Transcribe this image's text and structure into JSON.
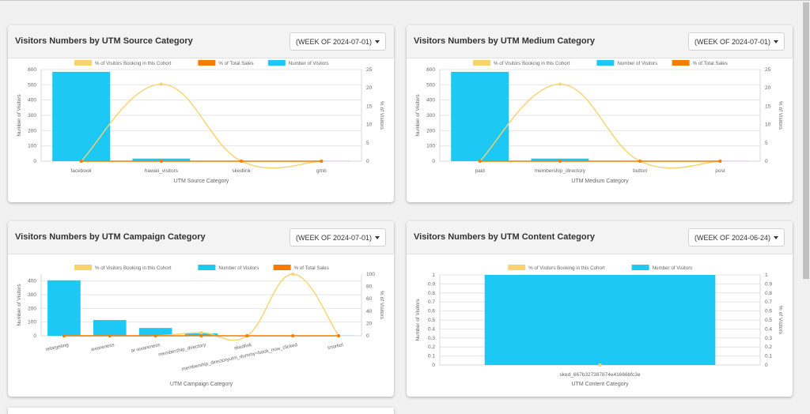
{
  "cards": [
    {
      "title": "Visitors Numbers by UTM Source Category",
      "week_value": "(WEEK OF 2024-07-01)",
      "legend": [
        {
          "label": "% of Visitors Booking in this Cohort",
          "color": "#f7d36c"
        },
        {
          "label": "% of Total Sales",
          "color": "#f57c00"
        },
        {
          "label": "Number of Visitors",
          "color": "#1ec8f5"
        }
      ],
      "y_left_label": "Number of Visitors",
      "y_right_label": "% of Visitors",
      "x_title": "UTM Source Category"
    },
    {
      "title": "Visitors Numbers by UTM Medium Category",
      "week_value": "(WEEK OF 2024-07-01)",
      "legend": [
        {
          "label": "% of Visitors Booking in this Cohort",
          "color": "#f7d36c"
        },
        {
          "label": "Number of Visitors",
          "color": "#1ec8f5"
        },
        {
          "label": "% of Total Sales",
          "color": "#f57c00"
        }
      ],
      "y_left_label": "Number of Visitors",
      "y_right_label": "% of Visitors",
      "x_title": "UTM Medium Category"
    },
    {
      "title": "Visitors Numbers by UTM Campaign Category",
      "week_value": "(WEEK OF 2024-07-01)",
      "legend": [
        {
          "label": "% of Visitors Booking in this Cohort",
          "color": "#f7d36c"
        },
        {
          "label": "Number of Visitors",
          "color": "#1ec8f5"
        },
        {
          "label": "% of Total Sales",
          "color": "#f57c00"
        }
      ],
      "y_left_label": "Number of Visitors",
      "y_right_label": "% of Visitors",
      "x_title": "UTM Campaign Category"
    },
    {
      "title": "Visitors Numbers by UTM Content Category",
      "week_value": "(WEEK OF 2024-06-24)",
      "legend": [
        {
          "label": "% of Visitors Booking in this Cohort",
          "color": "#f7d36c"
        },
        {
          "label": "Number of Visitors",
          "color": "#1ec8f5"
        }
      ],
      "y_left_label": "Number of Visitors",
      "y_right_label": "% of Visitors",
      "x_title": "UTM Content Category"
    }
  ],
  "chart_data": [
    {
      "type": "bar",
      "categories": [
        "facebook",
        "hawaii_visitors",
        "skedlink",
        "gmb"
      ],
      "series": [
        {
          "name": "Number of Visitors",
          "kind": "bar",
          "axis": "left",
          "color": "#1ec8f5",
          "values": [
            585,
            17,
            2,
            1
          ]
        },
        {
          "name": "% of Visitors Booking in this Cohort",
          "kind": "line",
          "axis": "right",
          "color": "#f7d36c",
          "values": [
            0,
            21,
            0,
            0
          ]
        },
        {
          "name": "% of Total Sales",
          "kind": "line",
          "axis": "right",
          "color": "#f57c00",
          "values": [
            0,
            0,
            0,
            0
          ]
        }
      ],
      "ylim_left": [
        0,
        600
      ],
      "yticks_left": [
        0,
        100,
        200,
        300,
        400,
        500,
        600
      ],
      "ylim_right": [
        0,
        25
      ],
      "yticks_right": [
        0,
        5,
        10,
        15,
        20,
        25
      ],
      "xlabel": "UTM Source Category",
      "ylabel": "Number of Visitors",
      "ylabel_right": "% of Visitors",
      "rotate_x": false,
      "grid": true
    },
    {
      "type": "bar",
      "categories": [
        "paid",
        "membership_directory",
        "button",
        "post"
      ],
      "series": [
        {
          "name": "Number of Visitors",
          "kind": "bar",
          "axis": "left",
          "color": "#1ec8f5",
          "values": [
            585,
            17,
            2,
            1
          ]
        },
        {
          "name": "% of Visitors Booking in this Cohort",
          "kind": "line",
          "axis": "right",
          "color": "#f7d36c",
          "values": [
            0,
            21,
            0,
            0
          ]
        },
        {
          "name": "% of Total Sales",
          "kind": "line",
          "axis": "right",
          "color": "#f57c00",
          "values": [
            0,
            0,
            0,
            0
          ]
        }
      ],
      "ylim_left": [
        0,
        600
      ],
      "yticks_left": [
        0,
        100,
        200,
        300,
        400,
        500,
        600
      ],
      "ylim_right": [
        0,
        25
      ],
      "yticks_right": [
        0,
        5,
        10,
        15,
        20,
        25
      ],
      "xlabel": "UTM Medium Category",
      "ylabel": "Number of Visitors",
      "ylabel_right": "% of Visitors",
      "rotate_x": false,
      "grid": true
    },
    {
      "type": "bar",
      "categories": [
        "retargeting",
        "awareness",
        "ar-awareness",
        "membership_directory",
        "skedlink",
        "membership_directoryutm_dummy=book_now_clicked",
        "snorkel"
      ],
      "series": [
        {
          "name": "Number of Visitors",
          "kind": "bar",
          "axis": "left",
          "color": "#1ec8f5",
          "values": [
            405,
            115,
            57,
            17,
            2,
            1,
            1
          ]
        },
        {
          "name": "% of Visitors Booking in this Cohort",
          "kind": "line",
          "axis": "right",
          "color": "#f7d36c",
          "values": [
            0,
            0,
            0,
            5,
            0,
            100,
            0
          ]
        },
        {
          "name": "% of Total Sales",
          "kind": "line",
          "axis": "right",
          "color": "#f57c00",
          "values": [
            0,
            0,
            0,
            0,
            0,
            0,
            0
          ]
        }
      ],
      "ylim_left": [
        0,
        450
      ],
      "yticks_left": [
        0,
        100,
        200,
        300,
        400
      ],
      "ylim_right": [
        0,
        100
      ],
      "yticks_right": [
        0,
        20,
        40,
        60,
        80,
        100
      ],
      "xlabel": "UTM Campaign Category",
      "ylabel": "Number of Visitors",
      "ylabel_right": "% of Visitors",
      "rotate_x": true,
      "grid": true
    },
    {
      "type": "bar",
      "categories": [
        "sked_667b327387874e41666bfc3e"
      ],
      "series": [
        {
          "name": "Number of Visitors",
          "kind": "bar",
          "axis": "left",
          "color": "#1ec8f5",
          "values": [
            1
          ]
        },
        {
          "name": "% of Visitors Booking in this Cohort",
          "kind": "line",
          "axis": "right",
          "color": "#f7d36c",
          "values": [
            0
          ]
        }
      ],
      "ylim_left": [
        0,
        1
      ],
      "yticks_left": [
        0,
        0.1,
        0.2,
        0.3,
        0.4,
        0.5,
        0.6,
        0.7,
        0.8,
        0.9,
        1.0
      ],
      "ylim_right": [
        0,
        1
      ],
      "yticks_right": [
        0,
        0.1,
        0.2,
        0.3,
        0.4,
        0.5,
        0.6,
        0.7,
        0.8,
        0.9,
        1.0
      ],
      "xlabel": "UTM Content Category",
      "ylabel": "Number of Visitors",
      "ylabel_right": "% of Visitors",
      "rotate_x": false,
      "grid": true
    }
  ]
}
